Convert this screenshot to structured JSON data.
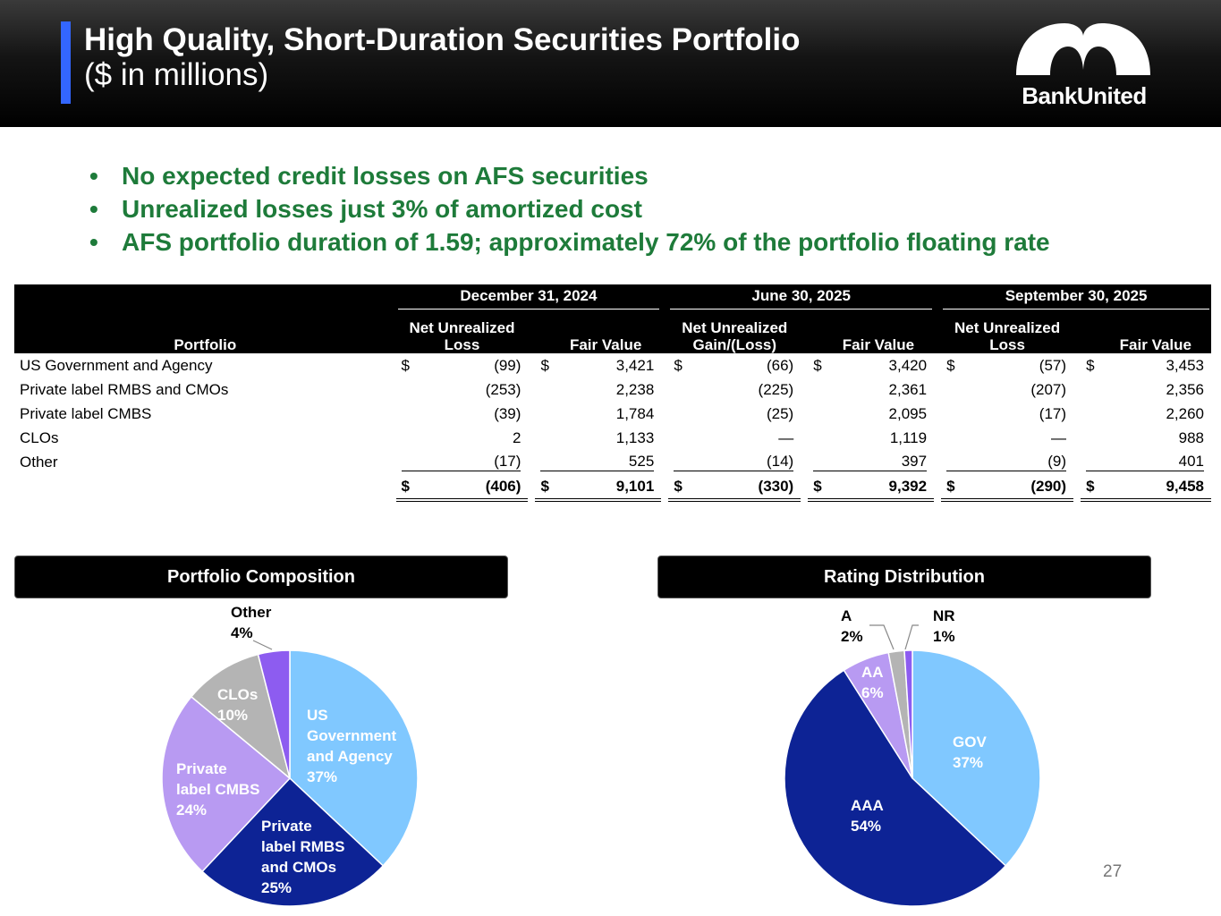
{
  "header": {
    "title": "High Quality, Short-Duration Securities Portfolio",
    "subtitle": "($ in millions)",
    "logo_text": "BankUnited",
    "accent_color": "#3366ff"
  },
  "bullets": [
    "No expected credit losses on AFS securities",
    "Unrealized losses just 3% of amortized cost",
    "AFS portfolio duration of 1.59; approximately 72% of the portfolio floating rate"
  ],
  "bullet_color": "#1e7b3a",
  "table": {
    "portfolio_header": "Portfolio",
    "periods": [
      {
        "label": "December 31, 2024",
        "col1": "Net Unrealized Loss",
        "col2": "Fair Value"
      },
      {
        "label": "June 30, 2025",
        "col1": "Net Unrealized Gain/(Loss)",
        "col2": "Fair Value"
      },
      {
        "label": "September 30, 2025",
        "col1": "Net Unrealized Loss",
        "col2": "Fair Value"
      }
    ],
    "currency": "$",
    "rows": [
      {
        "label": "US Government and Agency",
        "values": [
          "(99)",
          "3,421",
          "(66)",
          "3,420",
          "(57)",
          "3,453"
        ]
      },
      {
        "label": "Private label RMBS and CMOs",
        "values": [
          "(253)",
          "2,238",
          "(225)",
          "2,361",
          "(207)",
          "2,356"
        ]
      },
      {
        "label": "Private label CMBS",
        "values": [
          "(39)",
          "1,784",
          "(25)",
          "2,095",
          "(17)",
          "2,260"
        ]
      },
      {
        "label": "CLOs",
        "values": [
          "2",
          "1,133",
          "—",
          "1,119",
          "—",
          "988"
        ]
      },
      {
        "label": "Other",
        "values": [
          "(17)",
          "525",
          "(14)",
          "397",
          "(9)",
          "401"
        ]
      }
    ],
    "totals": [
      "(406)",
      "9,101",
      "(330)",
      "9,392",
      "(290)",
      "9,458"
    ]
  },
  "sections": {
    "composition_title": "Portfolio Composition",
    "rating_title": "Rating Distribution"
  },
  "chart_data": [
    {
      "type": "pie",
      "title": "Portfolio Composition",
      "slices": [
        {
          "label": "US Government and Agency",
          "display": [
            "US",
            "Government",
            "and Agency",
            "37%"
          ],
          "value": 37,
          "color": "#80c8ff",
          "text_color": "#ffffff"
        },
        {
          "label": "Private label RMBS and CMOs",
          "display": [
            "Private",
            "label RMBS",
            "and CMOs",
            "25%"
          ],
          "value": 25,
          "color": "#0d2395",
          "text_color": "#ffffff"
        },
        {
          "label": "Private label CMBS",
          "display": [
            "Private",
            "label CMBS",
            "24%"
          ],
          "value": 24,
          "color": "#b89af2",
          "text_color": "#ffffff"
        },
        {
          "label": "CLOs",
          "display": [
            "CLOs",
            "10%"
          ],
          "value": 10,
          "color": "#b4b4b4",
          "text_color": "#ffffff"
        },
        {
          "label": "Other",
          "display": [
            "Other",
            "4%"
          ],
          "value": 4,
          "color": "#8d5cf0",
          "text_color": "#000000",
          "outside": true
        }
      ]
    },
    {
      "type": "pie",
      "title": "Rating Distribution",
      "slices": [
        {
          "label": "GOV",
          "display": [
            "GOV",
            "37%"
          ],
          "value": 37,
          "color": "#80c8ff",
          "text_color": "#ffffff"
        },
        {
          "label": "AAA",
          "display": [
            "AAA",
            "54%"
          ],
          "value": 54,
          "color": "#0d2395",
          "text_color": "#ffffff"
        },
        {
          "label": "AA",
          "display": [
            "AA",
            "6%"
          ],
          "value": 6,
          "color": "#b89af2",
          "text_color": "#ffffff"
        },
        {
          "label": "A",
          "display": [
            "A",
            "2%"
          ],
          "value": 2,
          "color": "#b4b4b4",
          "text_color": "#000000",
          "outside": true
        },
        {
          "label": "NR",
          "display": [
            "NR",
            "1%"
          ],
          "value": 1,
          "color": "#8d5cf0",
          "text_color": "#000000",
          "outside": true
        }
      ]
    }
  ],
  "page_number": "27"
}
